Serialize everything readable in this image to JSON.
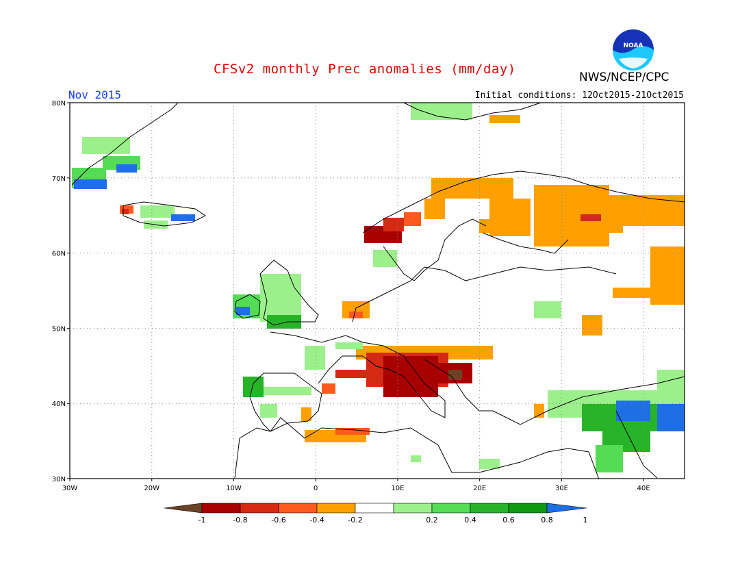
{
  "header": {
    "title": "CFSv2 monthly Prec anomalies (mm/day)",
    "org": "NWS/NCEP/CPC",
    "month": "Nov 2015",
    "initial_conditions": "Initial conditions: 12Oct2015-21Oct2015",
    "logo_text": "NOAA"
  },
  "axes": {
    "lat_ticks": [
      "80N",
      "70N",
      "60N",
      "50N",
      "40N",
      "30N"
    ],
    "lon_ticks": [
      "30W",
      "20W",
      "10W",
      "0",
      "10E",
      "20E",
      "30E",
      "40E"
    ],
    "lon_range": [
      -30,
      45
    ],
    "lat_range": [
      30,
      80
    ]
  },
  "colorbar": {
    "labels": [
      "-1",
      "-0.8",
      "-0.6",
      "-0.4",
      "-0.2",
      "0.2",
      "0.4",
      "0.6",
      "0.8",
      "1"
    ],
    "colors": [
      "#6b4226",
      "#a80000",
      "#d42a12",
      "#ff5a1e",
      "#ffa000",
      "#ffffff",
      "#9cf08c",
      "#54dc54",
      "#28b428",
      "#0f9a0f",
      "#1e6ee6"
    ]
  }
}
